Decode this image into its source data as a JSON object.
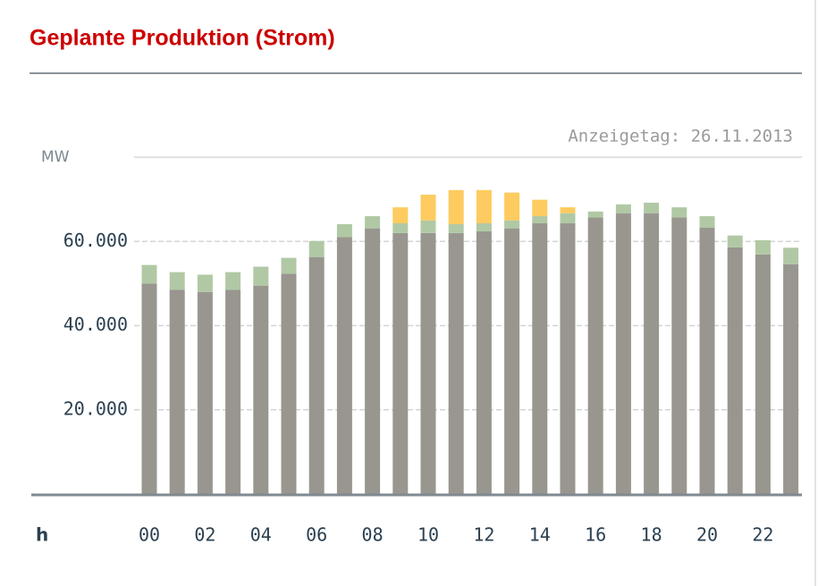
{
  "chart_data": {
    "type": "stacked_bar",
    "title": "Geplante Produktion (Strom)",
    "subtitle": "Anzeigetag: 26.11.2013",
    "y_label": "MW",
    "x_label": "h",
    "categories": [
      "00",
      null,
      "02",
      null,
      "04",
      null,
      "06",
      null,
      "08",
      null,
      "10",
      null,
      "12",
      null,
      "14",
      null,
      "16",
      null,
      "18",
      null,
      "20",
      null,
      "22",
      null
    ],
    "series": [
      {
        "color": "#99968f",
        "values": [
          50000,
          48500,
          48000,
          48500,
          49500,
          52300,
          56300,
          61000,
          63100,
          62000,
          62000,
          62000,
          62400,
          63100,
          64300,
          64300,
          65700,
          66700,
          66700,
          65700,
          63300,
          58600,
          56900,
          54600
        ]
      },
      {
        "color": "#b0c9a4",
        "values": [
          4400,
          4200,
          4100,
          4200,
          4500,
          3800,
          3800,
          3100,
          2900,
          2300,
          3000,
          2100,
          1900,
          1900,
          1700,
          2400,
          1400,
          2100,
          2500,
          2400,
          2700,
          2800,
          3400,
          3900
        ]
      },
      {
        "color": "#fdcb5f",
        "values": [
          0,
          0,
          0,
          0,
          0,
          0,
          0,
          0,
          0,
          3800,
          6100,
          8100,
          7900,
          6600,
          3900,
          1400,
          0,
          0,
          0,
          0,
          0,
          0,
          0,
          0
        ]
      }
    ],
    "ylim": [
      0,
      80000
    ],
    "yticks": [
      {
        "value": 20000,
        "label": "20.000"
      },
      {
        "value": 40000,
        "label": "40.000"
      },
      {
        "value": 60000,
        "label": "60.000"
      }
    ],
    "grid": true
  }
}
